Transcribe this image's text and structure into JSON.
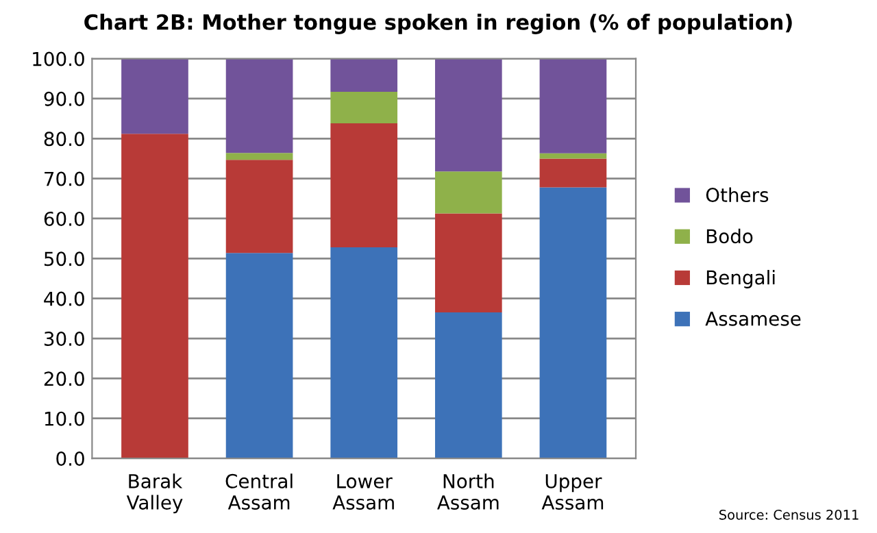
{
  "chart_data": {
    "type": "bar",
    "stacked": true,
    "title": "Chart 2B: Mother tongue spoken in region (% of population)",
    "categories": [
      "Barak\nValley",
      "Central\nAssam",
      "Lower\nAssam",
      "North\nAssam",
      "Upper\nAssam"
    ],
    "series": [
      {
        "name": "Assamese",
        "color": "#3d72b8",
        "values": [
          0,
          51.4,
          52.8,
          36.5,
          67.8
        ]
      },
      {
        "name": "Bengali",
        "color": "#b83a37",
        "values": [
          81.2,
          23.3,
          31.0,
          24.8,
          7.2
        ]
      },
      {
        "name": "Bodo",
        "color": "#8fb14a",
        "values": [
          0,
          1.7,
          7.9,
          10.5,
          1.3
        ]
      },
      {
        "name": "Others",
        "color": "#71539a",
        "values": [
          18.8,
          23.6,
          8.3,
          28.2,
          23.7
        ]
      }
    ],
    "ylim": [
      0,
      100
    ],
    "yticks": [
      {
        "value": 0,
        "label": "0.0"
      },
      {
        "value": 10,
        "label": "10.0"
      },
      {
        "value": 20,
        "label": "20.0"
      },
      {
        "value": 30,
        "label": "30.0"
      },
      {
        "value": 40,
        "label": "40.0"
      },
      {
        "value": 50,
        "label": "50.0"
      },
      {
        "value": 60,
        "label": "60.0"
      },
      {
        "value": 70,
        "label": "70.0"
      },
      {
        "value": 80,
        "label": "80.0"
      },
      {
        "value": 90,
        "label": "90.0"
      },
      {
        "value": 100,
        "label": "100.0"
      }
    ],
    "grid": "y",
    "legend": "right",
    "annotations": [
      "Source: Census 2011"
    ]
  }
}
